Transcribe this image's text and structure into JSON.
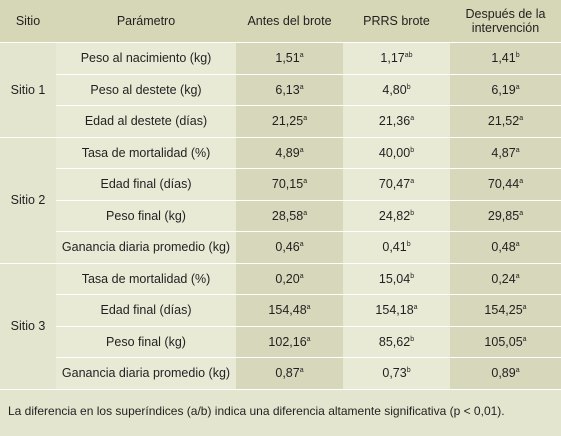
{
  "headers": {
    "site": "Sitio",
    "param": "Parámetro",
    "before": "Antes del brote",
    "prrs": "PRRS brote",
    "after": "Después de la intervención"
  },
  "rows": [
    {
      "site": "Sitio 1",
      "param": "Peso al nacimiento (kg)",
      "a": "1,51",
      "a_sup": "a",
      "b": "1,17",
      "b_sup": "ab",
      "c": "1,41",
      "c_sup": "b"
    },
    {
      "site": "",
      "param": "Peso al destete (kg)",
      "a": "6,13",
      "a_sup": "a",
      "b": "4,80",
      "b_sup": "b",
      "c": "6,19",
      "c_sup": "a"
    },
    {
      "site": "",
      "param": "Edad al destete (días)",
      "a": "21,25",
      "a_sup": "a",
      "b": "21,36",
      "b_sup": "a",
      "c": "21,52",
      "c_sup": "a"
    },
    {
      "site": "Sitio 2",
      "param": "Tasa de mortalidad (%)",
      "a": "4,89",
      "a_sup": "a",
      "b": "40,00",
      "b_sup": "b",
      "c": "4,87",
      "c_sup": "a"
    },
    {
      "site": "",
      "param": "Edad final (días)",
      "a": "70,15",
      "a_sup": "a",
      "b": "70,47",
      "b_sup": "a",
      "c": "70,44",
      "c_sup": "a"
    },
    {
      "site": "",
      "param": "Peso final (kg)",
      "a": "28,58",
      "a_sup": "a",
      "b": "24,82",
      "b_sup": "b",
      "c": "29,85",
      "c_sup": "a"
    },
    {
      "site": "",
      "param": "Ganancia diaria promedio (kg)",
      "a": "0,46",
      "a_sup": "a",
      "b": "0,41",
      "b_sup": "b",
      "c": "0,48",
      "c_sup": "a"
    },
    {
      "site": "Sitio 3",
      "param": "Tasa de mortalidad (%)",
      "a": "0,20",
      "a_sup": "a",
      "b": "15,04",
      "b_sup": "b",
      "c": "0,24",
      "c_sup": "a"
    },
    {
      "site": "",
      "param": "Edad final (días)",
      "a": "154,48",
      "a_sup": "a",
      "b": "154,18",
      "b_sup": "a",
      "c": "154,25",
      "c_sup": "a"
    },
    {
      "site": "",
      "param": "Peso final (kg)",
      "a": "102,16",
      "a_sup": "a",
      "b": "85,62",
      "b_sup": "b",
      "c": "105,05",
      "c_sup": "a"
    },
    {
      "site": "",
      "param": "Ganancia diaria promedio (kg)",
      "a": "0,87",
      "a_sup": "a",
      "b": "0,73",
      "b_sup": "b",
      "c": "0,89",
      "c_sup": "a"
    }
  ],
  "footnote": "La diferencia en los superíndices (a/b) indica una diferencia altamente significativa (p < 0,01)."
}
